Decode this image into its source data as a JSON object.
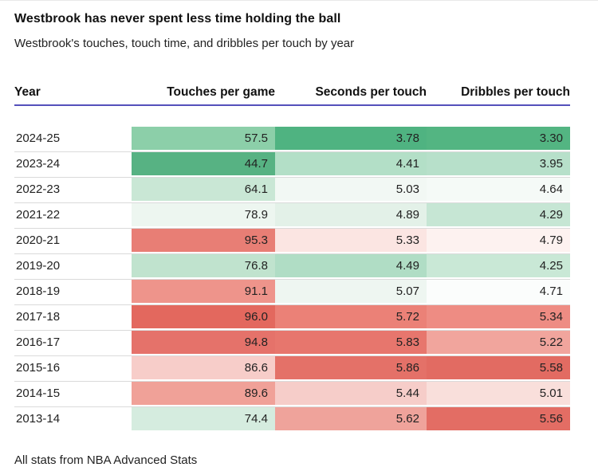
{
  "chart_data": {
    "type": "heatmap",
    "title": "Westbrook has never spent less time holding the ball",
    "subtitle": "Westbrook's touches, touch time, and dribbles per touch by year",
    "note": "All stats from NBA Advanced Stats",
    "columns": [
      "Year",
      "Touches per game",
      "Seconds per touch",
      "Dribbles per touch"
    ],
    "legend_position": "none",
    "grid": "row-separators",
    "accent_rule_color": "#5450bb",
    "color_scale": {
      "low_green": "#4fb381",
      "mid_white": "#f7faf8",
      "high_red": "#e3685e"
    },
    "rows": [
      {
        "year": "2024-25",
        "touches": {
          "v": "57.5",
          "c": "#8ccfa9"
        },
        "seconds": {
          "v": "3.78",
          "c": "#4fb381"
        },
        "dribbles": {
          "v": "3.30",
          "c": "#53b582"
        }
      },
      {
        "year": "2023-24",
        "touches": {
          "v": "44.7",
          "c": "#57b283"
        },
        "seconds": {
          "v": "4.41",
          "c": "#b3dfc7"
        },
        "dribbles": {
          "v": "3.95",
          "c": "#b7e0ca"
        }
      },
      {
        "year": "2022-23",
        "touches": {
          "v": "64.1",
          "c": "#c9e7d5"
        },
        "seconds": {
          "v": "5.03",
          "c": "#f2f8f4"
        },
        "dribbles": {
          "v": "4.64",
          "c": "#f5faf7"
        }
      },
      {
        "year": "2021-22",
        "touches": {
          "v": "78.9",
          "c": "#edf6f0"
        },
        "seconds": {
          "v": "4.89",
          "c": "#e3f1e8"
        },
        "dribbles": {
          "v": "4.29",
          "c": "#c6e6d4"
        }
      },
      {
        "year": "2020-21",
        "touches": {
          "v": "95.3",
          "c": "#e87e75"
        },
        "seconds": {
          "v": "5.33",
          "c": "#fbe5e2"
        },
        "dribbles": {
          "v": "4.79",
          "c": "#fdf2f0"
        }
      },
      {
        "year": "2019-20",
        "touches": {
          "v": "76.8",
          "c": "#c0e3ce"
        },
        "seconds": {
          "v": "4.49",
          "c": "#b0ddc5"
        },
        "dribbles": {
          "v": "4.25",
          "c": "#c9e8d6"
        }
      },
      {
        "year": "2018-19",
        "touches": {
          "v": "91.1",
          "c": "#ee948b"
        },
        "seconds": {
          "v": "5.07",
          "c": "#eef6f1"
        },
        "dribbles": {
          "v": "4.71",
          "c": "#fbfdfc"
        }
      },
      {
        "year": "2017-18",
        "touches": {
          "v": "96.0",
          "c": "#e3685e"
        },
        "seconds": {
          "v": "5.72",
          "c": "#eb8177"
        },
        "dribbles": {
          "v": "5.34",
          "c": "#ee8c83"
        }
      },
      {
        "year": "2016-17",
        "touches": {
          "v": "94.8",
          "c": "#e5726a"
        },
        "seconds": {
          "v": "5.83",
          "c": "#e7766d"
        },
        "dribbles": {
          "v": "5.22",
          "c": "#f1a59d"
        }
      },
      {
        "year": "2015-16",
        "touches": {
          "v": "86.6",
          "c": "#f7cdc9"
        },
        "seconds": {
          "v": "5.86",
          "c": "#e47168"
        },
        "dribbles": {
          "v": "5.58",
          "c": "#e26b62"
        }
      },
      {
        "year": "2014-15",
        "touches": {
          "v": "89.6",
          "c": "#f0a198"
        },
        "seconds": {
          "v": "5.44",
          "c": "#f6cdc9"
        },
        "dribbles": {
          "v": "5.01",
          "c": "#f9dfdb"
        }
      },
      {
        "year": "2013-14",
        "touches": {
          "v": "74.4",
          "c": "#d5ecdf"
        },
        "seconds": {
          "v": "5.62",
          "c": "#efa39b"
        },
        "dribbles": {
          "v": "5.56",
          "c": "#e36d64"
        }
      }
    ]
  }
}
